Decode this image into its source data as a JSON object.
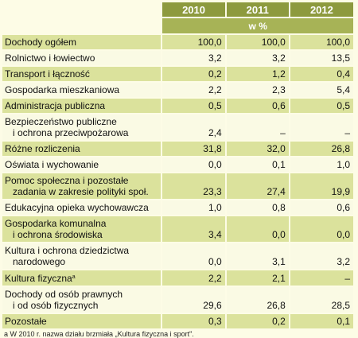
{
  "header": {
    "years": [
      "2010",
      "2011",
      "2012"
    ],
    "unit": "w %"
  },
  "rows": [
    {
      "label": [
        "Dochody ogółem"
      ],
      "values": [
        "100,0",
        "100,0",
        "100,0"
      ]
    },
    {
      "label": [
        "Rolnictwo i łowiectwo"
      ],
      "values": [
        "3,2",
        "3,2",
        "13,5"
      ]
    },
    {
      "label": [
        "Transport i łączność"
      ],
      "values": [
        "0,2",
        "1,2",
        "0,4"
      ]
    },
    {
      "label": [
        "Gospodarka mieszkaniowa"
      ],
      "values": [
        "2,2",
        "2,3",
        "5,4"
      ]
    },
    {
      "label": [
        "Administracja publiczna"
      ],
      "values": [
        "0,5",
        "0,6",
        "0,5"
      ]
    },
    {
      "label": [
        "Bezpieczeństwo publiczne",
        "i ochrona przeciwpożarowa"
      ],
      "values": [
        "2,4",
        "–",
        "–"
      ]
    },
    {
      "label": [
        "Różne rozliczenia"
      ],
      "values": [
        "31,8",
        "32,0",
        "26,8"
      ]
    },
    {
      "label": [
        "Oświata i wychowanie"
      ],
      "values": [
        "0,0",
        "0,1",
        "1,0"
      ]
    },
    {
      "label": [
        "Pomoc społeczna i pozostałe",
        "zadania w zakresie polityki społ."
      ],
      "values": [
        "23,3",
        "27,4",
        "19,9"
      ]
    },
    {
      "label": [
        "Edukacyjna opieka wychowawcza"
      ],
      "values": [
        "1,0",
        "0,8",
        "0,6"
      ]
    },
    {
      "label": [
        "Gospodarka komunalna",
        "i ochrona środowiska"
      ],
      "values": [
        "3,4",
        "0,0",
        "0,0"
      ]
    },
    {
      "label": [
        "Kultura i ochrona dziedzictwa",
        "narodowego"
      ],
      "values": [
        "0,0",
        "3,1",
        "3,2"
      ]
    },
    {
      "label": [
        "Kultura fizyczna"
      ],
      "sup": "a",
      "values": [
        "2,2",
        "2,1",
        "–"
      ]
    },
    {
      "label": [
        "Dochody od osób prawnych",
        "i od osób fizycznych"
      ],
      "values": [
        "29,6",
        "26,8",
        "28,5"
      ]
    },
    {
      "label": [
        "Pozostałe"
      ],
      "values": [
        "0,3",
        "0,2",
        "0,1"
      ]
    }
  ],
  "footnote": "a  W 2010 r. nazwa działu brzmiała „Kultura fizyczna i sport\"."
}
